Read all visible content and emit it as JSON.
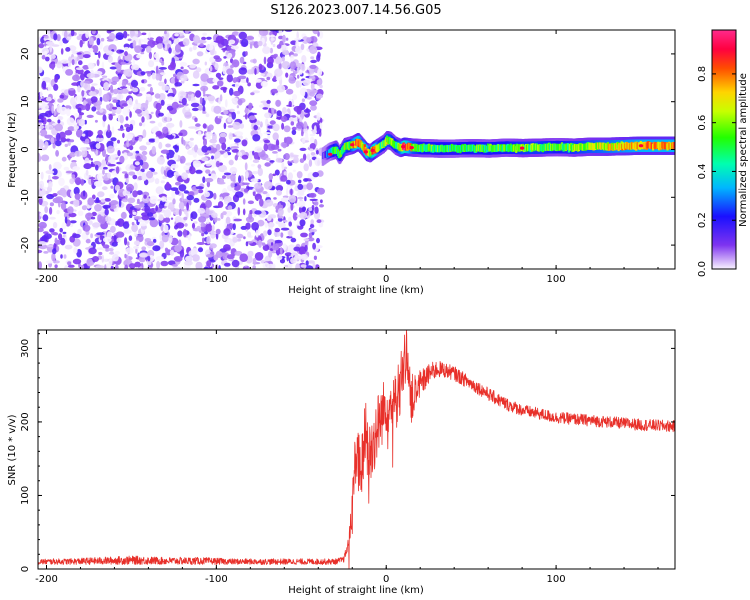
{
  "title": "S126.2023.007.14.56.G05",
  "colors": {
    "snr_line": "#e8302a",
    "scatter_base": "#8a3cf0",
    "axis": "#000000"
  },
  "colorbar": {
    "label": "Normalized spectral amplitude",
    "ticks": [
      "0.0",
      "0.2",
      "0.4",
      "0.6",
      "0.8"
    ],
    "tick_values": [
      0.0,
      0.2,
      0.4,
      0.6,
      0.8
    ],
    "range": [
      0.0,
      0.98
    ],
    "colormap": "rainbow (violet at 0 through blue, cyan, green, yellow, red, magenta at max)"
  },
  "chart_data": [
    {
      "type": "heatmap",
      "title": "S126.2023.007.14.56.G05",
      "xlabel": "Height of straight line (km)",
      "ylabel": "Frequency (Hz)",
      "xlim": [
        -205,
        170
      ],
      "ylim": [
        -25,
        25
      ],
      "xticks": [
        "-200",
        "-100",
        "0",
        "100"
      ],
      "xtick_values": [
        -200,
        -100,
        0,
        100
      ],
      "yticks": [
        "20",
        "10",
        "0",
        "-10",
        "-20"
      ],
      "ytick_values": [
        20,
        10,
        0,
        -10,
        -20
      ],
      "noise_region": {
        "x_range": [
          -205,
          -38
        ],
        "y_range": [
          -25,
          25
        ],
        "amplitude": "low (violet scatter)"
      },
      "signal_track": {
        "x": [
          -38,
          -36,
          -34,
          -30,
          -28,
          -25,
          -22,
          -20,
          -17,
          -15,
          -12,
          -10,
          -8,
          -5,
          -2,
          0,
          2,
          5,
          8,
          10,
          15,
          20,
          30,
          40,
          50,
          60,
          70,
          80,
          90,
          100,
          110,
          120,
          130,
          140,
          150,
          160,
          170
        ],
        "y": [
          -1.5,
          -1.0,
          -0.5,
          0.0,
          -1.2,
          0.5,
          0.8,
          1.0,
          1.6,
          0.8,
          -0.5,
          -0.8,
          -0.2,
          0.5,
          1.2,
          2.0,
          1.8,
          0.8,
          0.3,
          0.6,
          0.4,
          0.3,
          0.2,
          0.2,
          0.3,
          0.2,
          0.4,
          0.3,
          0.4,
          0.5,
          0.4,
          0.6,
          0.6,
          0.7,
          0.8,
          0.8,
          0.8
        ],
        "amplitude": [
          0.05,
          0.15,
          0.35,
          0.55,
          0.45,
          0.6,
          0.5,
          0.7,
          0.85,
          0.6,
          0.9,
          0.5,
          0.95,
          0.55,
          0.5,
          0.6,
          0.55,
          0.5,
          0.65,
          0.95,
          0.6,
          0.5,
          0.5,
          0.45,
          0.5,
          0.5,
          0.5,
          0.55,
          0.55,
          0.5,
          0.55,
          0.6,
          0.65,
          0.7,
          0.75,
          0.75,
          0.75
        ]
      }
    },
    {
      "type": "line",
      "xlabel": "Height of straight line (km)",
      "ylabel": "SNR (10 * v/v)",
      "xlim": [
        -205,
        170
      ],
      "ylim": [
        0,
        325
      ],
      "xticks": [
        "-200",
        "-100",
        "0",
        "100"
      ],
      "xtick_values": [
        -200,
        -100,
        0,
        100
      ],
      "yticks": [
        "300",
        "200",
        "100",
        "0"
      ],
      "ytick_values": [
        300,
        200,
        100,
        0
      ],
      "series": [
        {
          "x": [
            -205,
            -190,
            -170,
            -150,
            -130,
            -110,
            -90,
            -70,
            -50,
            -30,
            -25,
            -22,
            -20,
            -18,
            -15,
            -12,
            -10,
            -5,
            0,
            5,
            10,
            12,
            15,
            20,
            25,
            30,
            35,
            40,
            50,
            60,
            70,
            80,
            90,
            100,
            110,
            120,
            130,
            140,
            150,
            160,
            170
          ],
          "y": [
            10,
            10,
            11,
            12,
            11,
            11,
            10,
            10,
            10,
            10,
            13,
            35,
            85,
            160,
            130,
            185,
            150,
            195,
            225,
            220,
            270,
            300,
            230,
            250,
            265,
            272,
            270,
            266,
            252,
            238,
            225,
            216,
            211,
            206,
            204,
            202,
            200,
            198,
            196,
            195,
            194
          ],
          "noise": [
            4,
            4,
            5,
            6,
            5,
            5,
            4,
            4,
            4,
            4,
            4,
            10,
            25,
            45,
            45,
            50,
            50,
            45,
            40,
            40,
            45,
            30,
            35,
            20,
            14,
            12,
            10,
            10,
            9,
            9,
            9,
            8,
            8,
            8,
            8,
            8,
            8,
            8,
            8,
            8,
            8
          ]
        }
      ]
    }
  ]
}
